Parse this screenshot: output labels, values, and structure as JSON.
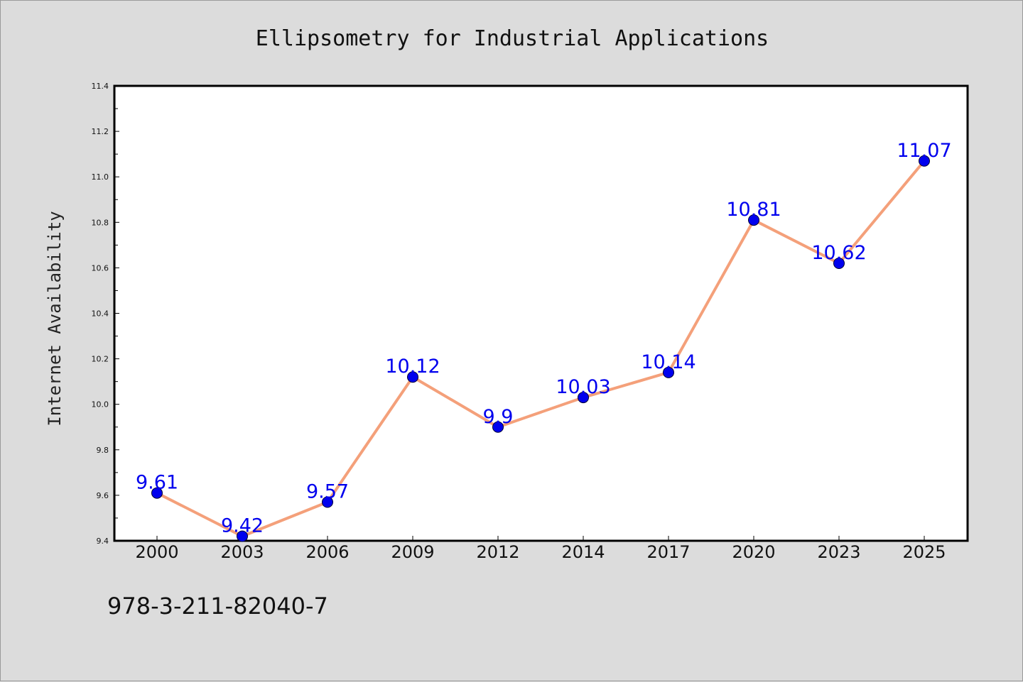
{
  "figure": {
    "title": "Ellipsometry for Industrial Applications",
    "footer_code": "978-3-211-82040-7"
  },
  "colors": {
    "background": "#dcdcdc",
    "plot_area": "#ffffff",
    "line": "#f4a07a",
    "marker": "#0000ee",
    "data_label": "#0000ee"
  },
  "chart_data": {
    "type": "line",
    "title": "Ellipsometry for Industrial Applications",
    "xlabel": "",
    "ylabel": "Internet Availability",
    "categories": [
      "2000",
      "2003",
      "2006",
      "2009",
      "2012",
      "2014",
      "2017",
      "2020",
      "2023",
      "2025"
    ],
    "series": [
      {
        "values": [
          9.61,
          9.42,
          9.57,
          10.12,
          9.9,
          10.03,
          10.14,
          10.81,
          10.62,
          11.07
        ]
      }
    ],
    "data_labels": [
      "9.61",
      "9.42",
      "9.57",
      "10.12",
      "9.9",
      "10.03",
      "10.14",
      "10.81",
      "10.62",
      "11.07"
    ],
    "ylim": [
      9.4,
      11.4
    ],
    "yticks": [
      "9.4",
      "9.6",
      "9.8",
      "10.0",
      "10.2",
      "10.4",
      "10.6",
      "10.8",
      "11.0",
      "11.2",
      "11.4"
    ],
    "grid": false,
    "legend": "none"
  }
}
